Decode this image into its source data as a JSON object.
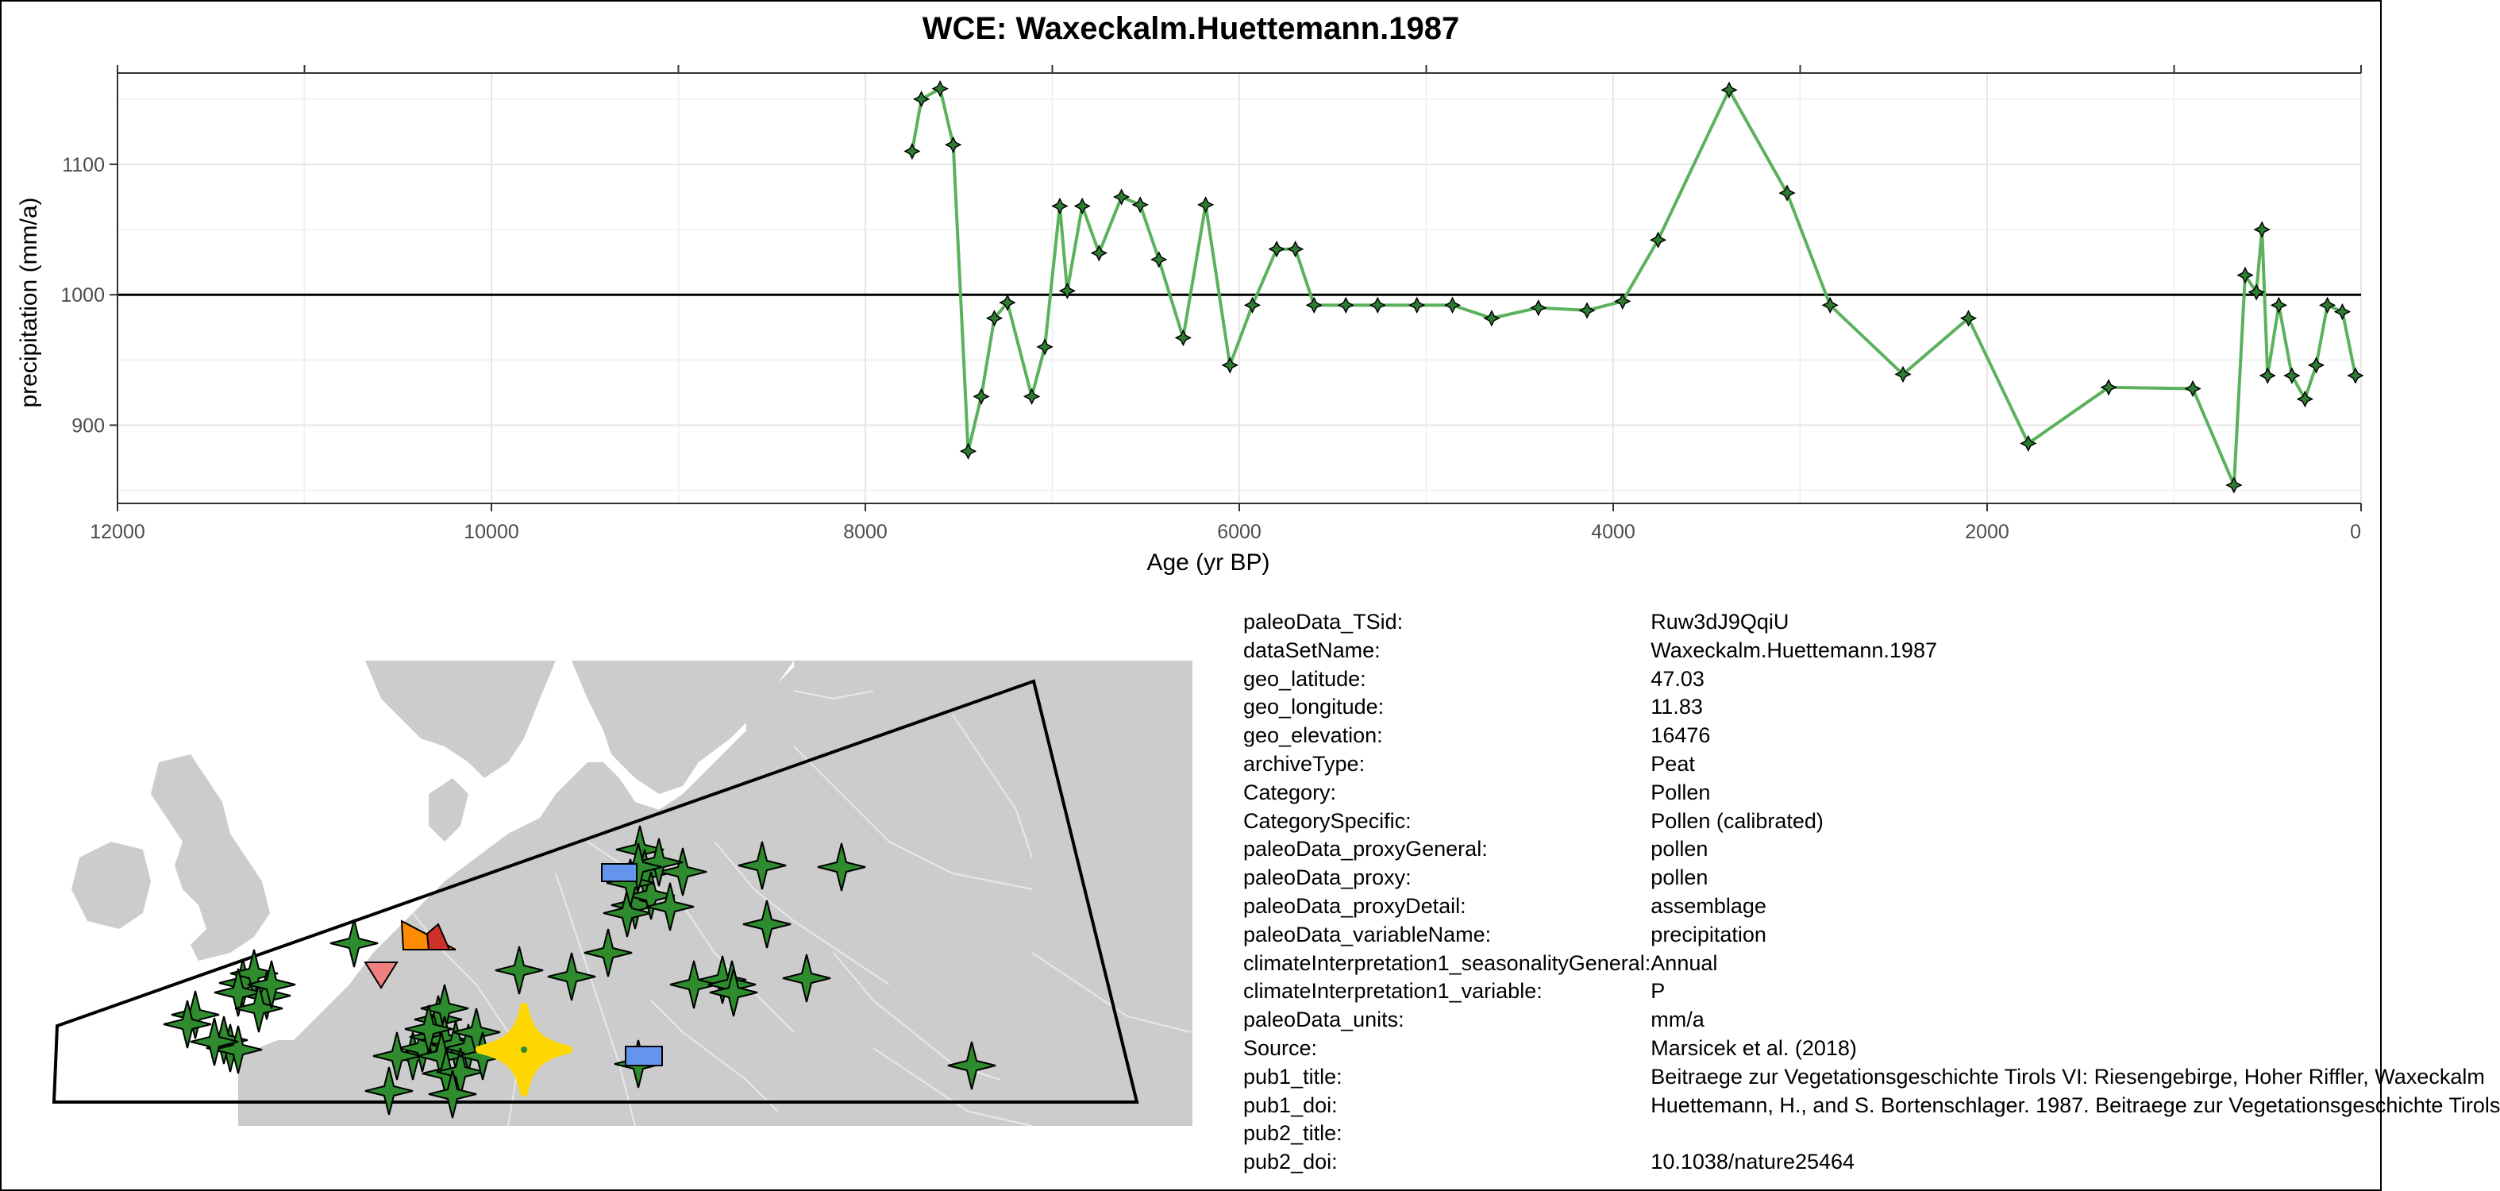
{
  "chart_data": {
    "type": "line",
    "title": "WCE: Waxeckalm.Huettemann.1987",
    "xlabel": "Age (yr BP)",
    "ylabel": "precipitation (mm/a)",
    "xlim": [
      12000,
      0
    ],
    "ylim": [
      840,
      1170
    ],
    "x_ticks": [
      12000,
      10000,
      8000,
      6000,
      4000,
      2000,
      0
    ],
    "x_tick_labels": [
      "12000",
      "10000",
      "8000",
      "6000",
      "4000",
      "2000",
      "0"
    ],
    "y_ticks": [
      900,
      1000,
      1100
    ],
    "y_tick_labels": [
      "900",
      "1000",
      "1100"
    ],
    "reference_line": 1000,
    "grid": true,
    "line_color": "#5cb25c",
    "marker_color": "#2e7d32",
    "series": [
      {
        "name": "precipitation",
        "x": [
          7750,
          7700,
          7600,
          7530,
          7450,
          7380,
          7310,
          7240,
          7110,
          7040,
          6960,
          6920,
          6840,
          6750,
          6630,
          6530,
          6430,
          6300,
          6180,
          6050,
          5930,
          5800,
          5700,
          5600,
          5430,
          5260,
          5050,
          4860,
          4650,
          4400,
          4140,
          3950,
          3760,
          3380,
          3070,
          2840,
          2450,
          2100,
          1780,
          1350,
          900,
          680,
          620,
          560,
          530,
          500,
          440,
          370,
          300,
          240,
          180,
          100,
          30
        ],
        "y": [
          1110,
          1150,
          1158,
          1115,
          880,
          922,
          982,
          994,
          922,
          960,
          1068,
          1003,
          1068,
          1032,
          1075,
          1069,
          1027,
          967,
          1069,
          946,
          992,
          1035,
          1035,
          992,
          992,
          992,
          992,
          992,
          982,
          990,
          988,
          995,
          1042,
          1157,
          1078,
          992,
          939,
          982,
          886,
          929,
          928,
          854,
          1015,
          1002,
          1050,
          938,
          992,
          938,
          920,
          946,
          992,
          987,
          938
        ]
      }
    ]
  },
  "metadata_rows": [
    {
      "key": "paleoData_TSid:",
      "value": "Ruw3dJ9QqiU"
    },
    {
      "key": "dataSetName:",
      "value": "Waxeckalm.Huettemann.1987"
    },
    {
      "key": "geo_latitude:",
      "value": "47.03"
    },
    {
      "key": "geo_longitude:",
      "value": "11.83"
    },
    {
      "key": "geo_elevation:",
      "value": "16476"
    },
    {
      "key": "archiveType:",
      "value": "Peat"
    },
    {
      "key": "Category:",
      "value": "Pollen"
    },
    {
      "key": "CategorySpecific:",
      "value": "Pollen (calibrated)"
    },
    {
      "key": "paleoData_proxyGeneral:",
      "value": "pollen"
    },
    {
      "key": "paleoData_proxy:",
      "value": "pollen"
    },
    {
      "key": "paleoData_proxyDetail:",
      "value": "assemblage"
    },
    {
      "key": "paleoData_variableName:",
      "value": "precipitation"
    },
    {
      "key": "climateInterpretation1_seasonalityGeneral:",
      "value": "Annual"
    },
    {
      "key": "climateInterpretation1_variable:",
      "value": "P"
    },
    {
      "key": "paleoData_units:",
      "value": "mm/a"
    },
    {
      "key": "Source:",
      "value": "Marsicek et al. (2018)"
    },
    {
      "key": "pub1_title:",
      "value": "Beitraege zur Vegetationsgeschichte Tirols VI: Riesengebirge, Hoher Riffler, Waxeckalm"
    },
    {
      "key": "pub1_doi:",
      "value": "Huettemann, H., and S. Bortenschlager. 1987. Beitraege zur Vegetationsgeschichte Tirols"
    },
    {
      "key": "pub2_title:",
      "value": ""
    },
    {
      "key": "pub2_doi:",
      "value": "10.1038/nature25464"
    }
  ],
  "map": {
    "land_color": "#cccccc",
    "border_color": "#e8e8e8",
    "marker_green": "#2e8b2e",
    "highlight_color": "#ffd700",
    "square_color": "#6495ed",
    "triangle_orange": "#ff8c00",
    "triangle_pink": "#f08080"
  }
}
